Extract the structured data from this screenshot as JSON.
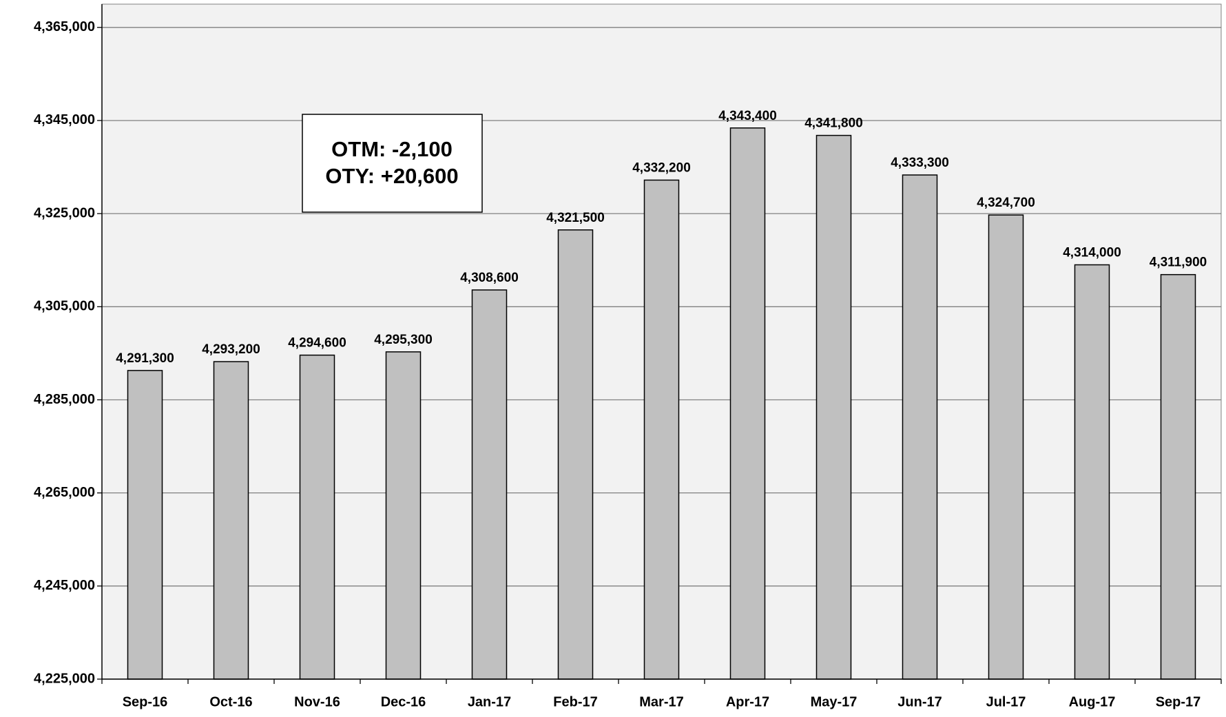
{
  "chart_data": {
    "type": "bar",
    "categories": [
      "Sep-16",
      "Oct-16",
      "Nov-16",
      "Dec-16",
      "Jan-17",
      "Feb-17",
      "Mar-17",
      "Apr-17",
      "May-17",
      "Jun-17",
      "Jul-17",
      "Aug-17",
      "Sep-17"
    ],
    "values": [
      4291300,
      4293200,
      4294600,
      4295300,
      4308600,
      4321500,
      4332200,
      4343400,
      4341800,
      4333300,
      4324700,
      4314000,
      4311900
    ],
    "value_labels": [
      "4,291,300",
      "4,293,200",
      "4,294,600",
      "4,295,300",
      "4,308,600",
      "4,321,500",
      "4,332,200",
      "4,343,400",
      "4,341,800",
      "4,333,300",
      "4,324,700",
      "4,314,000",
      "4,311,900"
    ],
    "color": "#c0c0c0",
    "ylim": [
      4225000,
      4370000
    ],
    "yticks": [
      {
        "value": 4225000,
        "label": "4,225,000"
      },
      {
        "value": 4245000,
        "label": "4,245,000"
      },
      {
        "value": 4265000,
        "label": "4,265,000"
      },
      {
        "value": 4285000,
        "label": "4,285,000"
      },
      {
        "value": 4305000,
        "label": "4,305,000"
      },
      {
        "value": 4325000,
        "label": "4,325,000"
      },
      {
        "value": 4345000,
        "label": "4,345,000"
      },
      {
        "value": 4365000,
        "label": "4,365,000"
      }
    ],
    "grid": true,
    "annotations": [
      "OTM: -2,100",
      "OTY: +20,600"
    ]
  }
}
